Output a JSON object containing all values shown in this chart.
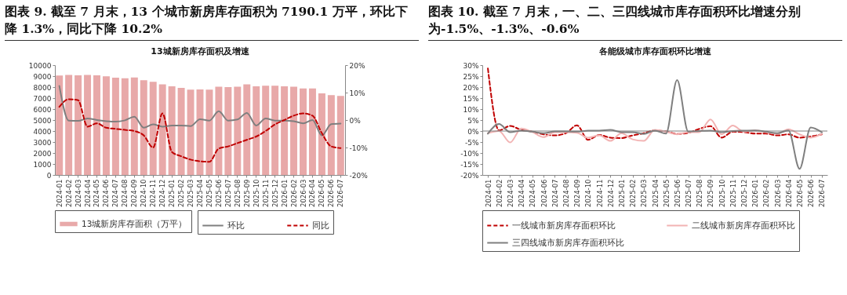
{
  "chart_data": [
    {
      "type": "bar",
      "title": "图表 9. 截至 7 月末，13 个城市新房库存面积为 7190.1 万平，环比下降 1.3%，同比下降 10.2%",
      "subtitle": "13城新房库存面积及增速",
      "categories": [
        "2024-01",
        "2024-02",
        "2024-03",
        "2024-04",
        "2024-05",
        "2024-06",
        "2024-07",
        "2024-08",
        "2024-09",
        "2024-10",
        "2024-11",
        "2024-12",
        "2025-01",
        "2025-02",
        "2025-03",
        "2025-04",
        "2025-05",
        "2025-06",
        "2025-07",
        "2025-08",
        "2025-09",
        "2025-10",
        "2025-11",
        "2025-12",
        "2026-01",
        "2026-02",
        "2026-03",
        "2026-04",
        "2026-05",
        "2026-06",
        "2026-07"
      ],
      "series": [
        {
          "name": "13城新房库存面积（万平）",
          "color": "#e8a9a9",
          "values": [
            9050,
            9100,
            9080,
            9100,
            9080,
            8980,
            8850,
            8800,
            8870,
            8620,
            8480,
            8250,
            8080,
            7920,
            7760,
            7780,
            7760,
            8030,
            8000,
            8040,
            8250,
            8080,
            8120,
            8120,
            8080,
            8040,
            7880,
            7870,
            7420,
            7260,
            7190
          ]
        },
        {
          "name": "环比",
          "type": "line",
          "axis": "y2",
          "color": "#7f7f7f",
          "line_style": "solid",
          "values": [
            12.4,
            -0.2,
            -0.3,
            0.6,
            0,
            -0.4,
            -0.6,
            -0.1,
            1.2,
            -2.8,
            -1.6,
            -2.4,
            -2.0,
            -2.0,
            -2.2,
            0.3,
            -0.2,
            3.2,
            -0.2,
            0.2,
            2.6,
            -2.0,
            0.6,
            -0.2,
            -0.2,
            -0.4,
            -1.2,
            0.0,
            -5.6,
            -1.5,
            -1.3
          ]
        },
        {
          "name": "同比",
          "type": "line",
          "axis": "y2",
          "color": "#c00000",
          "line_style": "dashed",
          "values": [
            4.8,
            7.6,
            7.2,
            -2.4,
            -1.2,
            -2.8,
            -3.2,
            -3.6,
            -4.0,
            -5.6,
            -10.0,
            2.4,
            -11.6,
            -13.2,
            -14.4,
            -15.0,
            -15.2,
            -10.4,
            -9.6,
            -8.4,
            -7.2,
            -6.0,
            -4.0,
            -1.6,
            0.0,
            1.6,
            2.4,
            1.6,
            -4.8,
            -9.6,
            -10.2
          ]
        }
      ],
      "ylim": [
        0,
        10000
      ],
      "yticks": [
        0,
        1000,
        2000,
        3000,
        4000,
        5000,
        6000,
        7000,
        8000,
        9000,
        10000
      ],
      "y2lim": [
        -20,
        20
      ],
      "y2ticks": [
        {
          "value": -20,
          "label": "-20%"
        },
        {
          "value": -10,
          "label": "-10%"
        },
        {
          "value": 0,
          "label": "0%"
        },
        {
          "value": 10,
          "label": "10%"
        },
        {
          "value": 20,
          "label": "20%"
        }
      ],
      "legend": "bottom",
      "grid": false,
      "marker": "none"
    },
    {
      "type": "line",
      "title": "图表 10. 截至 7 月末，一、二、三四线城市库存面积环比增速分别为-1.5%、-1.3%、-0.6%",
      "subtitle": "各能级城市库存面积环比增速",
      "categories": [
        "2024-01",
        "2024-02",
        "2024-03",
        "2024-04",
        "2024-05",
        "2024-06",
        "2024-07",
        "2024-08",
        "2024-09",
        "2024-10",
        "2024-11",
        "2024-12",
        "2025-01",
        "2025-02",
        "2025-03",
        "2025-04",
        "2025-05",
        "2025-06",
        "2025-07",
        "2025-08",
        "2025-09",
        "2025-10",
        "2025-11",
        "2025-12",
        "2026-01",
        "2026-02",
        "2026-03",
        "2026-04",
        "2026-05",
        "2026-06",
        "2026-07"
      ],
      "series": [
        {
          "name": "一线城市新房库存面积环比",
          "color": "#c00000",
          "line_style": "dashed",
          "values": [
            28.5,
            0.3,
            2.3,
            0.5,
            -0.3,
            -1.5,
            -2.0,
            -1.0,
            2.6,
            -4.0,
            -1.8,
            -3.0,
            -3.2,
            -2.0,
            -1.0,
            0.3,
            -0.2,
            -1.3,
            -0.8,
            1.0,
            2.2,
            -3.0,
            -0.3,
            -0.5,
            -1.2,
            -1.2,
            -2.0,
            -1.5,
            -3.0,
            -2.5,
            -1.5
          ]
        },
        {
          "name": "二线城市新房库存面积环比",
          "color": "#f2b3b3",
          "line_style": "solid",
          "values": [
            -1.0,
            0.0,
            -5.2,
            1.2,
            -0.5,
            -2.8,
            -0.5,
            -0.5,
            -0.8,
            -3.0,
            -2.0,
            -4.5,
            -1.0,
            -3.8,
            -4.5,
            0.5,
            -0.3,
            -1.5,
            -0.5,
            -0.5,
            5.3,
            -1.5,
            2.5,
            -0.3,
            0.3,
            -0.5,
            -1.2,
            0.8,
            -1.5,
            -3.0,
            -1.3
          ]
        },
        {
          "name": "三四线城市新房库存面积环比",
          "color": "#7f7f7f",
          "line_style": "solid",
          "values": [
            -1.2,
            3.2,
            -0.5,
            0.2,
            -0.3,
            -1.0,
            -0.2,
            -0.2,
            -0.3,
            0.2,
            0.2,
            0.5,
            -0.5,
            -0.5,
            -1.3,
            0.2,
            -1.2,
            23.2,
            -0.3,
            0.0,
            0.2,
            -0.5,
            0.0,
            0.2,
            0.3,
            -0.3,
            -1.0,
            0.3,
            -17.2,
            1.6,
            -0.6
          ]
        }
      ],
      "ylim": [
        -20,
        30
      ],
      "yticks": [
        {
          "value": -20,
          "label": "-20%"
        },
        {
          "value": -15,
          "label": "-15%"
        },
        {
          "value": -10,
          "label": "-10%"
        },
        {
          "value": -5,
          "label": "-5%"
        },
        {
          "value": 0,
          "label": "0%"
        },
        {
          "value": 5,
          "label": "5%"
        },
        {
          "value": 10,
          "label": "10%"
        },
        {
          "value": 15,
          "label": "15%"
        },
        {
          "value": 20,
          "label": "20%"
        },
        {
          "value": 25,
          "label": "25%"
        },
        {
          "value": 30,
          "label": "30%"
        }
      ],
      "ref_lines": [
        {
          "axis": "y",
          "value": 0,
          "color": "#7f7f7f"
        }
      ],
      "legend": "bottom",
      "grid": false,
      "marker": "none"
    }
  ]
}
